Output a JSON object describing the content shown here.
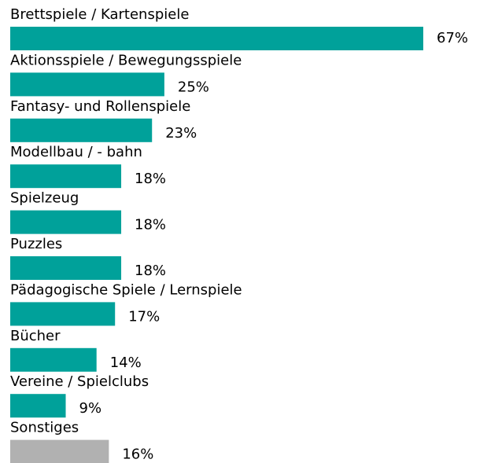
{
  "chart_data": {
    "type": "bar",
    "orientation": "horizontal",
    "categories": [
      "Brettspiele / Kartenspiele",
      "Aktionsspiele / Bewegungsspiele",
      "Fantasy- und Rollenspiele",
      "Modellbau / - bahn",
      "Spielzeug",
      "Puzzles",
      "Pädagogische Spiele / Lernspiele",
      "Bücher",
      "Vereine / Spielclubs",
      "Sonstiges"
    ],
    "values": [
      67,
      25,
      23,
      18,
      18,
      18,
      17,
      14,
      9,
      16
    ],
    "value_labels": [
      "67%",
      "25%",
      "23%",
      "18%",
      "18%",
      "18%",
      "17%",
      "14%",
      "9%",
      "16%"
    ],
    "colors": [
      "#00a19a",
      "#00a19a",
      "#00a19a",
      "#00a19a",
      "#00a19a",
      "#00a19a",
      "#00a19a",
      "#00a19a",
      "#00a19a",
      "#b1b1b1"
    ]
  }
}
